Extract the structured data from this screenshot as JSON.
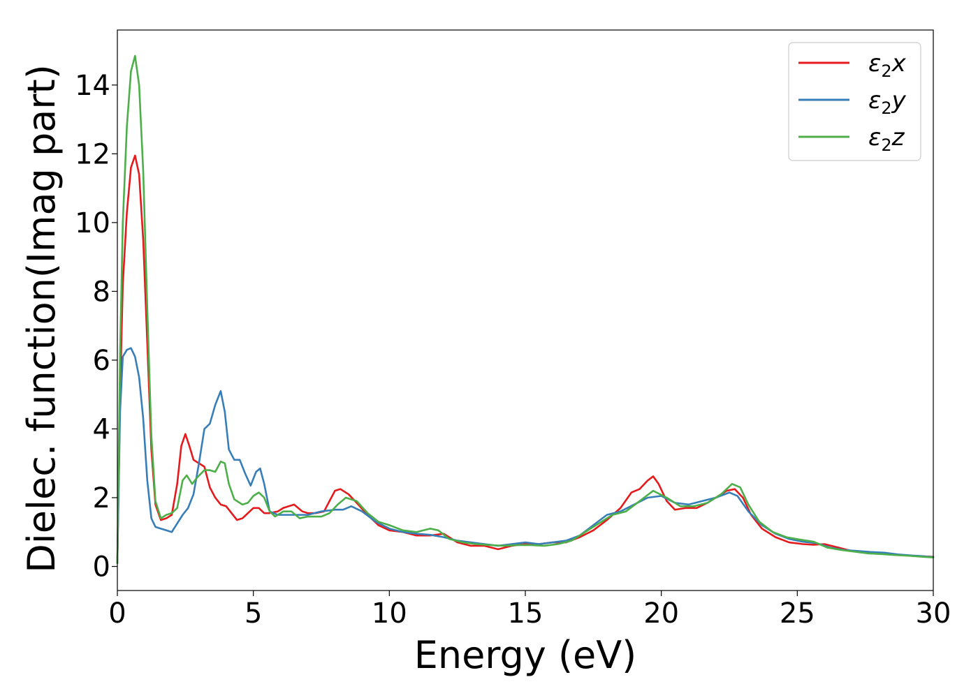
{
  "chart_data": {
    "type": "line",
    "xlabel": "Energy (eV)",
    "ylabel": "Dielec. function(Imag part)",
    "xlim": [
      0,
      30
    ],
    "ylim": [
      -0.7,
      15.6
    ],
    "xticks": [
      0,
      5,
      10,
      15,
      20,
      25,
      30
    ],
    "yticks": [
      0,
      2,
      4,
      6,
      8,
      10,
      12,
      14
    ],
    "grid": false,
    "legend_position": "top-right",
    "series": [
      {
        "name": "ε2x",
        "legend_main": "ε",
        "legend_sub": "2",
        "legend_suffix": "x",
        "color": "#e41a1c",
        "points": [
          [
            0,
            0.1
          ],
          [
            0.1,
            5.0
          ],
          [
            0.2,
            8.2
          ],
          [
            0.35,
            10.3
          ],
          [
            0.5,
            11.6
          ],
          [
            0.65,
            11.95
          ],
          [
            0.8,
            11.4
          ],
          [
            0.95,
            9.5
          ],
          [
            1.1,
            6.5
          ],
          [
            1.25,
            3.4
          ],
          [
            1.4,
            1.8
          ],
          [
            1.6,
            1.35
          ],
          [
            1.8,
            1.4
          ],
          [
            2.0,
            1.5
          ],
          [
            2.2,
            2.4
          ],
          [
            2.35,
            3.5
          ],
          [
            2.5,
            3.85
          ],
          [
            2.65,
            3.5
          ],
          [
            2.8,
            3.1
          ],
          [
            3.0,
            3.0
          ],
          [
            3.2,
            2.9
          ],
          [
            3.4,
            2.3
          ],
          [
            3.6,
            2.0
          ],
          [
            3.8,
            1.8
          ],
          [
            4.0,
            1.75
          ],
          [
            4.2,
            1.55
          ],
          [
            4.4,
            1.35
          ],
          [
            4.6,
            1.4
          ],
          [
            4.8,
            1.55
          ],
          [
            5.0,
            1.7
          ],
          [
            5.2,
            1.7
          ],
          [
            5.4,
            1.55
          ],
          [
            5.6,
            1.55
          ],
          [
            5.9,
            1.6
          ],
          [
            6.1,
            1.7
          ],
          [
            6.3,
            1.75
          ],
          [
            6.5,
            1.8
          ],
          [
            6.8,
            1.6
          ],
          [
            7.0,
            1.55
          ],
          [
            7.3,
            1.55
          ],
          [
            7.6,
            1.6
          ],
          [
            7.8,
            1.9
          ],
          [
            8.0,
            2.2
          ],
          [
            8.2,
            2.25
          ],
          [
            8.5,
            2.1
          ],
          [
            8.8,
            1.85
          ],
          [
            9.2,
            1.5
          ],
          [
            9.6,
            1.2
          ],
          [
            10.0,
            1.05
          ],
          [
            10.5,
            1.0
          ],
          [
            11.0,
            0.9
          ],
          [
            11.5,
            0.9
          ],
          [
            12.0,
            0.95
          ],
          [
            12.5,
            0.7
          ],
          [
            13.0,
            0.6
          ],
          [
            13.5,
            0.6
          ],
          [
            14.0,
            0.5
          ],
          [
            14.5,
            0.6
          ],
          [
            15.0,
            0.65
          ],
          [
            15.5,
            0.65
          ],
          [
            16.0,
            0.7
          ],
          [
            16.5,
            0.7
          ],
          [
            17.0,
            0.85
          ],
          [
            17.5,
            1.05
          ],
          [
            18.0,
            1.35
          ],
          [
            18.5,
            1.7
          ],
          [
            18.9,
            2.15
          ],
          [
            19.2,
            2.25
          ],
          [
            19.5,
            2.5
          ],
          [
            19.7,
            2.62
          ],
          [
            19.9,
            2.4
          ],
          [
            20.2,
            1.9
          ],
          [
            20.5,
            1.65
          ],
          [
            20.9,
            1.7
          ],
          [
            21.3,
            1.7
          ],
          [
            21.7,
            1.85
          ],
          [
            22.0,
            2.0
          ],
          [
            22.4,
            2.2
          ],
          [
            22.7,
            2.25
          ],
          [
            23.0,
            2.0
          ],
          [
            23.3,
            1.5
          ],
          [
            23.7,
            1.1
          ],
          [
            24.2,
            0.85
          ],
          [
            24.7,
            0.7
          ],
          [
            25.2,
            0.65
          ],
          [
            25.6,
            0.63
          ],
          [
            26.0,
            0.65
          ],
          [
            26.5,
            0.55
          ],
          [
            27.0,
            0.45
          ],
          [
            27.5,
            0.4
          ],
          [
            28.0,
            0.38
          ],
          [
            28.5,
            0.35
          ],
          [
            29.0,
            0.32
          ],
          [
            29.5,
            0.3
          ],
          [
            30.0,
            0.28
          ]
        ]
      },
      {
        "name": "ε2y",
        "legend_main": "ε",
        "legend_sub": "2",
        "legend_suffix": "y",
        "color": "#377eb8",
        "points": [
          [
            0,
            0.1
          ],
          [
            0.1,
            4.5
          ],
          [
            0.2,
            6.1
          ],
          [
            0.35,
            6.3
          ],
          [
            0.5,
            6.35
          ],
          [
            0.65,
            6.1
          ],
          [
            0.8,
            5.5
          ],
          [
            0.95,
            4.3
          ],
          [
            1.1,
            2.5
          ],
          [
            1.25,
            1.4
          ],
          [
            1.4,
            1.15
          ],
          [
            1.6,
            1.1
          ],
          [
            1.8,
            1.05
          ],
          [
            2.0,
            1.0
          ],
          [
            2.2,
            1.25
          ],
          [
            2.4,
            1.5
          ],
          [
            2.6,
            1.7
          ],
          [
            2.8,
            2.1
          ],
          [
            3.0,
            3.0
          ],
          [
            3.2,
            4.0
          ],
          [
            3.4,
            4.15
          ],
          [
            3.6,
            4.7
          ],
          [
            3.8,
            5.1
          ],
          [
            3.95,
            4.5
          ],
          [
            4.1,
            3.4
          ],
          [
            4.3,
            3.1
          ],
          [
            4.5,
            3.1
          ],
          [
            4.7,
            2.7
          ],
          [
            4.9,
            2.35
          ],
          [
            5.1,
            2.75
          ],
          [
            5.25,
            2.85
          ],
          [
            5.4,
            2.4
          ],
          [
            5.6,
            1.6
          ],
          [
            5.9,
            1.5
          ],
          [
            6.3,
            1.5
          ],
          [
            6.7,
            1.5
          ],
          [
            7.0,
            1.5
          ],
          [
            7.5,
            1.6
          ],
          [
            8.0,
            1.65
          ],
          [
            8.3,
            1.65
          ],
          [
            8.6,
            1.75
          ],
          [
            9.0,
            1.6
          ],
          [
            9.5,
            1.3
          ],
          [
            10.0,
            1.1
          ],
          [
            10.5,
            1.0
          ],
          [
            11.0,
            0.95
          ],
          [
            11.5,
            0.92
          ],
          [
            12.0,
            0.85
          ],
          [
            12.5,
            0.75
          ],
          [
            13.0,
            0.7
          ],
          [
            13.5,
            0.65
          ],
          [
            14.0,
            0.6
          ],
          [
            14.5,
            0.65
          ],
          [
            15.0,
            0.7
          ],
          [
            15.5,
            0.65
          ],
          [
            16.0,
            0.7
          ],
          [
            16.5,
            0.75
          ],
          [
            17.0,
            0.9
          ],
          [
            17.5,
            1.2
          ],
          [
            18.0,
            1.5
          ],
          [
            18.5,
            1.6
          ],
          [
            19.0,
            1.8
          ],
          [
            19.5,
            2.0
          ],
          [
            20.0,
            2.05
          ],
          [
            20.5,
            1.85
          ],
          [
            21.0,
            1.8
          ],
          [
            21.5,
            1.9
          ],
          [
            22.0,
            2.0
          ],
          [
            22.5,
            2.15
          ],
          [
            22.8,
            2.05
          ],
          [
            23.2,
            1.6
          ],
          [
            23.7,
            1.2
          ],
          [
            24.2,
            0.95
          ],
          [
            24.7,
            0.8
          ],
          [
            25.2,
            0.72
          ],
          [
            25.7,
            0.68
          ],
          [
            26.2,
            0.55
          ],
          [
            26.7,
            0.48
          ],
          [
            27.2,
            0.45
          ],
          [
            27.7,
            0.42
          ],
          [
            28.2,
            0.4
          ],
          [
            28.7,
            0.35
          ],
          [
            29.2,
            0.32
          ],
          [
            29.6,
            0.3
          ],
          [
            30.0,
            0.27
          ]
        ]
      },
      {
        "name": "ε2z",
        "legend_main": "ε",
        "legend_sub": "2",
        "legend_suffix": "z",
        "color": "#4daf4a",
        "points": [
          [
            0,
            0.1
          ],
          [
            0.1,
            6.2
          ],
          [
            0.2,
            10.0
          ],
          [
            0.35,
            12.8
          ],
          [
            0.5,
            14.4
          ],
          [
            0.65,
            14.85
          ],
          [
            0.8,
            14.0
          ],
          [
            0.95,
            11.5
          ],
          [
            1.1,
            7.5
          ],
          [
            1.25,
            3.8
          ],
          [
            1.4,
            1.9
          ],
          [
            1.6,
            1.4
          ],
          [
            1.8,
            1.5
          ],
          [
            2.0,
            1.55
          ],
          [
            2.2,
            1.7
          ],
          [
            2.4,
            2.5
          ],
          [
            2.55,
            2.65
          ],
          [
            2.75,
            2.4
          ],
          [
            2.95,
            2.6
          ],
          [
            3.2,
            2.8
          ],
          [
            3.4,
            2.8
          ],
          [
            3.6,
            2.75
          ],
          [
            3.8,
            3.05
          ],
          [
            3.95,
            3.0
          ],
          [
            4.1,
            2.4
          ],
          [
            4.3,
            1.95
          ],
          [
            4.6,
            1.8
          ],
          [
            4.8,
            1.85
          ],
          [
            5.0,
            2.05
          ],
          [
            5.2,
            2.15
          ],
          [
            5.4,
            2.0
          ],
          [
            5.6,
            1.6
          ],
          [
            5.8,
            1.45
          ],
          [
            6.1,
            1.6
          ],
          [
            6.4,
            1.6
          ],
          [
            6.7,
            1.4
          ],
          [
            7.0,
            1.45
          ],
          [
            7.5,
            1.45
          ],
          [
            7.8,
            1.55
          ],
          [
            8.1,
            1.8
          ],
          [
            8.4,
            2.0
          ],
          [
            8.8,
            1.9
          ],
          [
            9.2,
            1.55
          ],
          [
            9.6,
            1.3
          ],
          [
            10.0,
            1.2
          ],
          [
            10.5,
            1.05
          ],
          [
            11.0,
            1.0
          ],
          [
            11.5,
            1.1
          ],
          [
            11.8,
            1.05
          ],
          [
            12.2,
            0.8
          ],
          [
            12.7,
            0.7
          ],
          [
            13.2,
            0.65
          ],
          [
            13.7,
            0.62
          ],
          [
            14.2,
            0.6
          ],
          [
            14.7,
            0.62
          ],
          [
            15.2,
            0.62
          ],
          [
            15.7,
            0.6
          ],
          [
            16.2,
            0.65
          ],
          [
            16.7,
            0.75
          ],
          [
            17.2,
            1.0
          ],
          [
            17.7,
            1.25
          ],
          [
            18.2,
            1.5
          ],
          [
            18.7,
            1.6
          ],
          [
            19.2,
            1.9
          ],
          [
            19.7,
            2.2
          ],
          [
            20.2,
            2.0
          ],
          [
            20.7,
            1.75
          ],
          [
            21.2,
            1.75
          ],
          [
            21.7,
            1.85
          ],
          [
            22.2,
            2.1
          ],
          [
            22.6,
            2.4
          ],
          [
            22.9,
            2.3
          ],
          [
            23.2,
            1.8
          ],
          [
            23.6,
            1.3
          ],
          [
            24.1,
            1.0
          ],
          [
            24.6,
            0.85
          ],
          [
            25.1,
            0.78
          ],
          [
            25.6,
            0.72
          ],
          [
            26.1,
            0.55
          ],
          [
            26.6,
            0.48
          ],
          [
            27.1,
            0.43
          ],
          [
            27.6,
            0.38
          ],
          [
            28.1,
            0.36
          ],
          [
            28.6,
            0.33
          ],
          [
            29.1,
            0.31
          ],
          [
            29.6,
            0.28
          ],
          [
            30.0,
            0.26
          ]
        ]
      }
    ]
  }
}
